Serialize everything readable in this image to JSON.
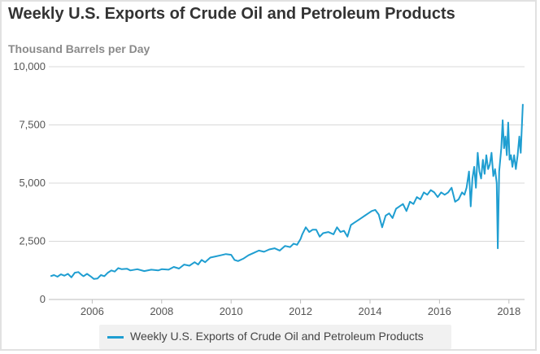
{
  "chart_data": {
    "type": "line",
    "title": "Weekly U.S. Exports of Crude Oil and Petroleum Products",
    "ylabel": "Thousand Barrels per Day",
    "xlabel": "",
    "ylim": [
      0,
      10000
    ],
    "xlim": [
      2004.75,
      2018.45
    ],
    "y_ticks": [
      {
        "value": 0,
        "label": "0"
      },
      {
        "value": 2500,
        "label": "2,500"
      },
      {
        "value": 5000,
        "label": "5,000"
      },
      {
        "value": 7500,
        "label": "7,500"
      },
      {
        "value": 10000,
        "label": "10,000"
      }
    ],
    "x_ticks": [
      {
        "value": 2006,
        "label": "2006"
      },
      {
        "value": 2008,
        "label": "2008"
      },
      {
        "value": 2010,
        "label": "2010"
      },
      {
        "value": 2012,
        "label": "2012"
      },
      {
        "value": 2014,
        "label": "2014"
      },
      {
        "value": 2016,
        "label": "2016"
      },
      {
        "value": 2018,
        "label": "2018"
      }
    ],
    "grid": true,
    "legend_position": "bottom",
    "series": [
      {
        "name": "Weekly U.S. Exports of Crude Oil and Petroleum Products",
        "color": "#1f9ed1",
        "points": [
          [
            2004.8,
            1000
          ],
          [
            2004.9,
            1050
          ],
          [
            2005.0,
            980
          ],
          [
            2005.1,
            1080
          ],
          [
            2005.2,
            1020
          ],
          [
            2005.3,
            1100
          ],
          [
            2005.4,
            950
          ],
          [
            2005.5,
            1150
          ],
          [
            2005.6,
            1180
          ],
          [
            2005.7,
            1050
          ],
          [
            2005.75,
            1000
          ],
          [
            2005.85,
            1100
          ],
          [
            2005.95,
            1000
          ],
          [
            2006.05,
            880
          ],
          [
            2006.15,
            900
          ],
          [
            2006.25,
            1050
          ],
          [
            2006.35,
            1000
          ],
          [
            2006.45,
            1150
          ],
          [
            2006.55,
            1250
          ],
          [
            2006.65,
            1200
          ],
          [
            2006.75,
            1350
          ],
          [
            2006.85,
            1300
          ],
          [
            2007.0,
            1320
          ],
          [
            2007.1,
            1250
          ],
          [
            2007.3,
            1300
          ],
          [
            2007.5,
            1220
          ],
          [
            2007.7,
            1280
          ],
          [
            2007.9,
            1250
          ],
          [
            2008.0,
            1300
          ],
          [
            2008.2,
            1280
          ],
          [
            2008.35,
            1400
          ],
          [
            2008.5,
            1330
          ],
          [
            2008.65,
            1500
          ],
          [
            2008.8,
            1450
          ],
          [
            2008.95,
            1600
          ],
          [
            2009.05,
            1500
          ],
          [
            2009.15,
            1700
          ],
          [
            2009.25,
            1600
          ],
          [
            2009.4,
            1800
          ],
          [
            2009.55,
            1850
          ],
          [
            2009.7,
            1900
          ],
          [
            2009.85,
            1950
          ],
          [
            2010.0,
            1920
          ],
          [
            2010.1,
            1700
          ],
          [
            2010.2,
            1650
          ],
          [
            2010.35,
            1750
          ],
          [
            2010.5,
            1900
          ],
          [
            2010.65,
            2000
          ],
          [
            2010.8,
            2100
          ],
          [
            2010.95,
            2050
          ],
          [
            2011.1,
            2150
          ],
          [
            2011.25,
            2200
          ],
          [
            2011.4,
            2100
          ],
          [
            2011.55,
            2300
          ],
          [
            2011.7,
            2250
          ],
          [
            2011.8,
            2400
          ],
          [
            2011.9,
            2350
          ],
          [
            2012.0,
            2600
          ],
          [
            2012.05,
            2800
          ],
          [
            2012.15,
            3100
          ],
          [
            2012.25,
            2900
          ],
          [
            2012.35,
            3000
          ],
          [
            2012.45,
            3000
          ],
          [
            2012.55,
            2700
          ],
          [
            2012.65,
            2850
          ],
          [
            2012.8,
            2900
          ],
          [
            2012.95,
            2800
          ],
          [
            2013.05,
            3100
          ],
          [
            2013.15,
            2900
          ],
          [
            2013.25,
            2950
          ],
          [
            2013.35,
            2700
          ],
          [
            2013.45,
            3200
          ],
          [
            2013.55,
            3300
          ],
          [
            2013.65,
            3400
          ],
          [
            2013.75,
            3500
          ],
          [
            2013.85,
            3600
          ],
          [
            2013.95,
            3700
          ],
          [
            2014.05,
            3800
          ],
          [
            2014.15,
            3850
          ],
          [
            2014.25,
            3650
          ],
          [
            2014.35,
            3100
          ],
          [
            2014.45,
            3600
          ],
          [
            2014.55,
            3700
          ],
          [
            2014.65,
            3500
          ],
          [
            2014.75,
            3900
          ],
          [
            2014.85,
            4000
          ],
          [
            2014.95,
            4100
          ],
          [
            2015.05,
            3800
          ],
          [
            2015.15,
            4200
          ],
          [
            2015.25,
            4100
          ],
          [
            2015.35,
            4400
          ],
          [
            2015.45,
            4300
          ],
          [
            2015.55,
            4600
          ],
          [
            2015.65,
            4500
          ],
          [
            2015.75,
            4700
          ],
          [
            2015.85,
            4600
          ],
          [
            2015.95,
            4400
          ],
          [
            2016.05,
            4600
          ],
          [
            2016.15,
            4500
          ],
          [
            2016.25,
            4600
          ],
          [
            2016.35,
            4800
          ],
          [
            2016.45,
            4200
          ],
          [
            2016.55,
            4300
          ],
          [
            2016.65,
            4600
          ],
          [
            2016.72,
            4500
          ],
          [
            2016.78,
            4800
          ],
          [
            2016.85,
            5500
          ],
          [
            2016.9,
            4000
          ],
          [
            2016.95,
            5200
          ],
          [
            2017.0,
            5700
          ],
          [
            2017.05,
            4800
          ],
          [
            2017.1,
            6300
          ],
          [
            2017.15,
            5500
          ],
          [
            2017.2,
            5200
          ],
          [
            2017.25,
            6000
          ],
          [
            2017.3,
            5400
          ],
          [
            2017.35,
            6200
          ],
          [
            2017.4,
            5600
          ],
          [
            2017.45,
            5800
          ],
          [
            2017.5,
            6300
          ],
          [
            2017.55,
            5300
          ],
          [
            2017.6,
            5600
          ],
          [
            2017.65,
            5000
          ],
          [
            2017.68,
            2200
          ],
          [
            2017.72,
            5500
          ],
          [
            2017.78,
            6500
          ],
          [
            2017.82,
            7700
          ],
          [
            2017.86,
            6500
          ],
          [
            2017.9,
            7000
          ],
          [
            2017.94,
            6200
          ],
          [
            2017.98,
            7600
          ],
          [
            2018.02,
            6000
          ],
          [
            2018.06,
            6200
          ],
          [
            2018.1,
            5700
          ],
          [
            2018.15,
            6200
          ],
          [
            2018.2,
            5600
          ],
          [
            2018.25,
            6200
          ],
          [
            2018.3,
            7000
          ],
          [
            2018.34,
            6300
          ],
          [
            2018.4,
            8400
          ]
        ]
      }
    ]
  }
}
